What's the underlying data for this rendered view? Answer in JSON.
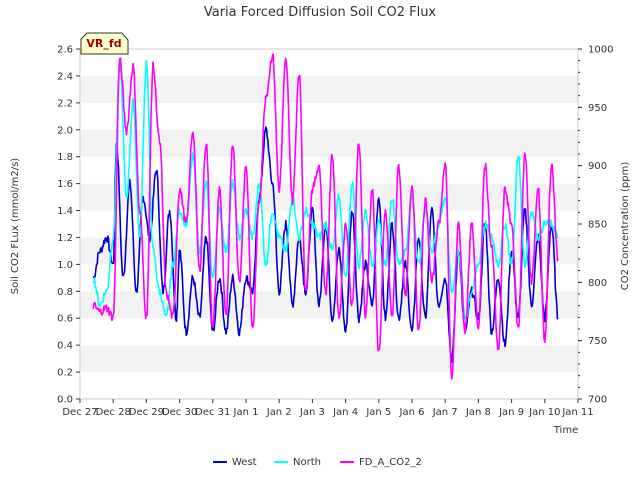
{
  "chart_data": {
    "type": "line",
    "title": "Varia Forced Diffusion Soil CO2 Flux",
    "badge": "VR_fd",
    "xlabel": "Time",
    "ylabel": "Soil CO2 FLux (mmol/m2/s)",
    "y2label": "CO2 Concentration (ppm)",
    "xlim": [
      0,
      15
    ],
    "ylim": [
      0,
      2.6
    ],
    "y2lim": [
      700,
      1000
    ],
    "x_ticks": [
      0,
      1,
      2,
      3,
      4,
      5,
      6,
      7,
      8,
      9,
      10,
      11,
      12,
      13,
      14,
      15
    ],
    "x_tick_labels": [
      "Dec 27",
      "Dec 28",
      "Dec 29",
      "Dec 30",
      "Dec 31",
      "Jan 1",
      "Jan 2",
      "Jan 3",
      "Jan 4",
      "Jan 5",
      "Jan 6",
      "Jan 7",
      "Jan 8",
      "Jan 9",
      "Jan 10",
      "Jan 11"
    ],
    "y_ticks": [
      "0.0",
      "0.2",
      "0.4",
      "0.6",
      "0.8",
      "1.0",
      "1.2",
      "1.4",
      "1.6",
      "1.8",
      "2.0",
      "2.2",
      "2.4",
      "2.6"
    ],
    "y2_ticks": [
      "700",
      "750",
      "800",
      "850",
      "900",
      "950",
      "1000"
    ],
    "grid": "horizontal bands",
    "legend_position": "bottom-center",
    "series": [
      {
        "name": "West",
        "axis": "left",
        "color": "#0000cc",
        "x": [
          0.4,
          0.6,
          0.8,
          1.0,
          1.1,
          1.3,
          1.5,
          1.7,
          1.9,
          2.1,
          2.3,
          2.5,
          2.7,
          2.9,
          3.0,
          3.2,
          3.4,
          3.6,
          3.8,
          4.0,
          4.2,
          4.4,
          4.6,
          4.8,
          5.0,
          5.2,
          5.4,
          5.6,
          5.8,
          6.0,
          6.2,
          6.4,
          6.6,
          6.8,
          7.0,
          7.2,
          7.4,
          7.6,
          7.8,
          8.0,
          8.2,
          8.4,
          8.6,
          8.8,
          9.0,
          9.2,
          9.4,
          9.6,
          9.8,
          10.0,
          10.2,
          10.4,
          10.6,
          10.8,
          11.0,
          11.2,
          11.4,
          11.6,
          11.8,
          12.0,
          12.2,
          12.4,
          12.6,
          12.8,
          13.0,
          13.2,
          13.4,
          13.6,
          13.8,
          14.0,
          14.2,
          14.4
        ],
        "y": [
          0.9,
          1.1,
          1.2,
          1.0,
          1.9,
          0.9,
          1.6,
          0.8,
          1.5,
          1.2,
          1.7,
          0.8,
          1.4,
          0.6,
          1.1,
          0.5,
          0.9,
          0.6,
          1.2,
          0.5,
          0.9,
          0.5,
          0.9,
          0.5,
          0.9,
          0.8,
          1.5,
          2.0,
          1.6,
          0.8,
          1.3,
          0.7,
          1.2,
          0.8,
          1.4,
          0.7,
          1.3,
          0.6,
          1.1,
          0.5,
          1.4,
          0.6,
          1.0,
          0.7,
          1.5,
          0.6,
          1.3,
          0.6,
          1.0,
          0.5,
          1.2,
          0.6,
          1.4,
          0.7,
          0.9,
          0.3,
          1.1,
          0.5,
          0.8,
          0.6,
          1.3,
          0.5,
          0.9,
          0.4,
          1.1,
          0.6,
          1.4,
          0.7,
          1.2,
          0.6,
          1.3,
          0.6
        ]
      },
      {
        "name": "North",
        "axis": "left",
        "color": "#00ffff",
        "x": [
          0.4,
          0.6,
          0.8,
          1.0,
          1.2,
          1.4,
          1.6,
          1.8,
          2.0,
          2.2,
          2.4,
          2.6,
          2.8,
          3.0,
          3.2,
          3.4,
          3.6,
          3.8,
          4.0,
          4.2,
          4.4,
          4.6,
          4.8,
          5.0,
          5.2,
          5.4,
          5.6,
          5.8,
          6.0,
          6.2,
          6.4,
          6.6,
          6.8,
          7.0,
          7.2,
          7.4,
          7.6,
          7.8,
          8.0,
          8.2,
          8.4,
          8.6,
          8.8,
          9.0,
          9.2,
          9.4,
          9.6,
          9.8,
          10.0,
          10.2,
          10.4,
          10.6,
          10.8,
          11.0,
          11.2,
          11.4,
          11.6,
          11.8,
          12.0,
          12.2,
          12.4,
          12.6,
          12.8,
          13.0,
          13.2,
          13.4,
          13.6,
          13.8,
          14.0,
          14.2,
          14.4
        ],
        "y": [
          0.9,
          0.7,
          0.8,
          1.2,
          2.5,
          1.5,
          2.2,
          1.2,
          2.5,
          1.1,
          0.8,
          0.6,
          1.0,
          1.4,
          1.3,
          1.8,
          1.1,
          1.6,
          0.9,
          1.4,
          1.1,
          1.6,
          1.2,
          1.4,
          1.2,
          1.6,
          1.0,
          1.4,
          1.2,
          1.1,
          1.5,
          1.2,
          1.4,
          1.3,
          1.2,
          1.3,
          1.1,
          1.5,
          0.9,
          1.6,
          1.0,
          1.4,
          1.0,
          1.3,
          1.0,
          1.5,
          1.0,
          1.1,
          1.5,
          1.0,
          1.4,
          1.1,
          1.3,
          1.5,
          0.8,
          1.1,
          0.6,
          0.8,
          1.0,
          1.3,
          1.2,
          1.0,
          1.3,
          1.0,
          1.8,
          1.0,
          1.4,
          1.2,
          1.3,
          1.3,
          1.2
        ]
      },
      {
        "name": "FD_A_CO2_2",
        "axis": "right",
        "color": "#ff00ff",
        "x": [
          0.4,
          0.6,
          0.8,
          1.0,
          1.2,
          1.4,
          1.6,
          1.8,
          2.0,
          2.2,
          2.4,
          2.6,
          2.8,
          3.0,
          3.2,
          3.4,
          3.6,
          3.8,
          4.0,
          4.2,
          4.4,
          4.6,
          4.8,
          5.0,
          5.2,
          5.4,
          5.6,
          5.8,
          6.0,
          6.2,
          6.4,
          6.6,
          6.8,
          7.0,
          7.2,
          7.4,
          7.6,
          7.8,
          8.0,
          8.2,
          8.4,
          8.6,
          8.8,
          9.0,
          9.2,
          9.4,
          9.6,
          9.8,
          10.0,
          10.2,
          10.4,
          10.6,
          10.8,
          11.0,
          11.2,
          11.4,
          11.6,
          11.8,
          12.0,
          12.2,
          12.4,
          12.6,
          12.8,
          13.0,
          13.2,
          13.4,
          13.6,
          13.8,
          14.0,
          14.2,
          14.4
        ],
        "y": [
          780,
          775,
          778,
          770,
          990,
          930,
          985,
          860,
          770,
          985,
          920,
          790,
          770,
          880,
          850,
          930,
          810,
          920,
          760,
          880,
          770,
          920,
          800,
          900,
          760,
          870,
          960,
          995,
          880,
          990,
          870,
          980,
          790,
          880,
          900,
          790,
          910,
          770,
          850,
          780,
          920,
          770,
          880,
          740,
          860,
          770,
          900,
          790,
          880,
          760,
          870,
          800,
          850,
          900,
          720,
          850,
          760,
          850,
          760,
          900,
          830,
          740,
          880,
          850,
          760,
          910,
          800,
          880,
          750,
          900,
          820
        ]
      }
    ]
  }
}
